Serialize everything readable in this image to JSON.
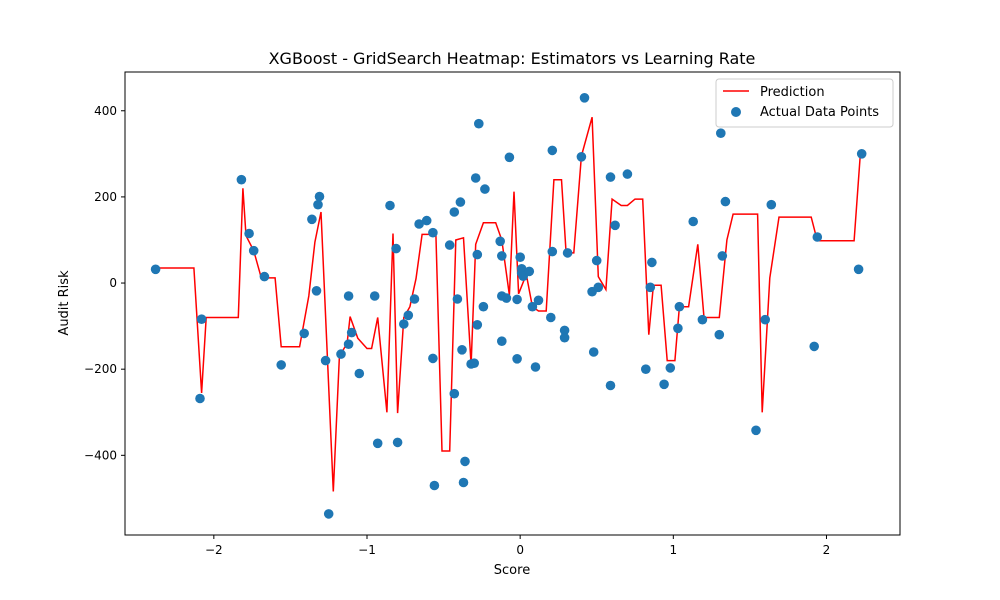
{
  "chart_data": {
    "type": "scatter",
    "title": "XGBoost - GridSearch Heatmap: Estimators vs Learning Rate",
    "xlabel": "Score",
    "ylabel": "Audit Risk",
    "xlim": [
      -2.58,
      2.48
    ],
    "ylim": [
      -585,
      490
    ],
    "xticks": [
      -2,
      -1,
      0,
      1,
      2
    ],
    "xtick_labels": [
      "−2",
      "−1",
      "0",
      "1",
      "2"
    ],
    "yticks": [
      -400,
      -200,
      0,
      200,
      400
    ],
    "ytick_labels": [
      "−400",
      "−200",
      "0",
      "200",
      "400"
    ],
    "grid": false,
    "legend_position": "top-right",
    "series": [
      {
        "name": "Prediction",
        "kind": "line",
        "color": "#ff0000",
        "points": [
          [
            -2.38,
            35
          ],
          [
            -2.13,
            35
          ],
          [
            -2.08,
            -255
          ],
          [
            -2.05,
            -80
          ],
          [
            -1.84,
            -80
          ],
          [
            -1.81,
            220
          ],
          [
            -1.79,
            110
          ],
          [
            -1.74,
            75
          ],
          [
            -1.69,
            12
          ],
          [
            -1.6,
            12
          ],
          [
            -1.56,
            -148
          ],
          [
            -1.44,
            -148
          ],
          [
            -1.38,
            -30
          ],
          [
            -1.34,
            95
          ],
          [
            -1.3,
            165
          ],
          [
            -1.22,
            -484
          ],
          [
            -1.18,
            -170
          ],
          [
            -1.13,
            -140
          ],
          [
            -1.11,
            -78
          ],
          [
            -1.06,
            -128
          ],
          [
            -1.0,
            -152
          ],
          [
            -0.97,
            -152
          ],
          [
            -0.93,
            -80
          ],
          [
            -0.87,
            -300
          ],
          [
            -0.83,
            115
          ],
          [
            -0.8,
            -302
          ],
          [
            -0.76,
            -80
          ],
          [
            -0.72,
            -55
          ],
          [
            -0.68,
            10
          ],
          [
            -0.64,
            113
          ],
          [
            -0.6,
            113
          ],
          [
            -0.55,
            113
          ],
          [
            -0.51,
            -390
          ],
          [
            -0.46,
            -390
          ],
          [
            -0.42,
            100
          ],
          [
            -0.37,
            105
          ],
          [
            -0.32,
            -190
          ],
          [
            -0.29,
            90
          ],
          [
            -0.24,
            140
          ],
          [
            -0.16,
            140
          ],
          [
            -0.12,
            100
          ],
          [
            -0.07,
            -28
          ],
          [
            -0.04,
            212
          ],
          [
            -0.01,
            -25
          ],
          [
            0.04,
            20
          ],
          [
            0.08,
            -55
          ],
          [
            0.12,
            -65
          ],
          [
            0.17,
            -65
          ],
          [
            0.22,
            240
          ],
          [
            0.27,
            240
          ],
          [
            0.3,
            70
          ],
          [
            0.35,
            70
          ],
          [
            0.4,
            295
          ],
          [
            0.47,
            385
          ],
          [
            0.51,
            15
          ],
          [
            0.56,
            -15
          ],
          [
            0.6,
            195
          ],
          [
            0.66,
            180
          ],
          [
            0.7,
            180
          ],
          [
            0.75,
            195
          ],
          [
            0.8,
            195
          ],
          [
            0.84,
            -120
          ],
          [
            0.87,
            -5
          ],
          [
            0.92,
            -5
          ],
          [
            0.96,
            -180
          ],
          [
            1.01,
            -180
          ],
          [
            1.04,
            -55
          ],
          [
            1.1,
            -55
          ],
          [
            1.16,
            90
          ],
          [
            1.2,
            -80
          ],
          [
            1.3,
            -80
          ],
          [
            1.35,
            100
          ],
          [
            1.39,
            160
          ],
          [
            1.55,
            160
          ],
          [
            1.58,
            -300
          ],
          [
            1.63,
            12
          ],
          [
            1.69,
            153
          ],
          [
            1.9,
            153
          ],
          [
            1.94,
            98
          ],
          [
            2.18,
            98
          ],
          [
            2.22,
            295
          ]
        ]
      },
      {
        "name": "Actual Data Points",
        "kind": "scatter",
        "color": "#1f77b4",
        "points": [
          [
            -2.38,
            32
          ],
          [
            -2.08,
            -84
          ],
          [
            -2.09,
            -268
          ],
          [
            -1.82,
            240
          ],
          [
            -1.77,
            115
          ],
          [
            -1.74,
            75
          ],
          [
            -1.67,
            15
          ],
          [
            -1.56,
            -190
          ],
          [
            -1.41,
            -117
          ],
          [
            -1.36,
            148
          ],
          [
            -1.33,
            -18
          ],
          [
            -1.32,
            182
          ],
          [
            -1.31,
            201
          ],
          [
            -1.27,
            -180
          ],
          [
            -1.25,
            -536
          ],
          [
            -1.17,
            -165
          ],
          [
            -1.12,
            -30
          ],
          [
            -1.12,
            -142
          ],
          [
            -1.1,
            -115
          ],
          [
            -1.05,
            -210
          ],
          [
            -0.95,
            -30
          ],
          [
            -0.93,
            -372
          ],
          [
            -0.85,
            180
          ],
          [
            -0.81,
            80
          ],
          [
            -0.8,
            -370
          ],
          [
            -0.76,
            -95
          ],
          [
            -0.73,
            -75
          ],
          [
            -0.69,
            -37
          ],
          [
            -0.66,
            137
          ],
          [
            -0.61,
            145
          ],
          [
            -0.57,
            117
          ],
          [
            -0.57,
            -175
          ],
          [
            -0.56,
            -470
          ],
          [
            -0.46,
            88
          ],
          [
            -0.43,
            165
          ],
          [
            -0.43,
            -257
          ],
          [
            -0.41,
            -37
          ],
          [
            -0.39,
            188
          ],
          [
            -0.38,
            -155
          ],
          [
            -0.37,
            -463
          ],
          [
            -0.36,
            -414
          ],
          [
            -0.32,
            -188
          ],
          [
            -0.3,
            -186
          ],
          [
            -0.29,
            244
          ],
          [
            -0.28,
            66
          ],
          [
            -0.28,
            -97
          ],
          [
            -0.27,
            370
          ],
          [
            -0.23,
            218
          ],
          [
            -0.24,
            -55
          ],
          [
            -0.13,
            97
          ],
          [
            -0.12,
            63
          ],
          [
            -0.12,
            -30
          ],
          [
            -0.12,
            -135
          ],
          [
            -0.09,
            -35
          ],
          [
            -0.07,
            292
          ],
          [
            -0.02,
            -38
          ],
          [
            -0.02,
            -176
          ],
          [
            0.0,
            60
          ],
          [
            0.01,
            33
          ],
          [
            0.01,
            23
          ],
          [
            0.02,
            16
          ],
          [
            0.06,
            27
          ],
          [
            0.08,
            -55
          ],
          [
            0.1,
            -195
          ],
          [
            0.12,
            -40
          ],
          [
            0.2,
            -80
          ],
          [
            0.21,
            308
          ],
          [
            0.21,
            73
          ],
          [
            0.29,
            -110
          ],
          [
            0.29,
            -127
          ],
          [
            0.31,
            70
          ],
          [
            0.4,
            293
          ],
          [
            0.42,
            430
          ],
          [
            0.47,
            -20
          ],
          [
            0.48,
            -160
          ],
          [
            0.5,
            52
          ],
          [
            0.51,
            -10
          ],
          [
            0.59,
            246
          ],
          [
            0.59,
            -238
          ],
          [
            0.62,
            134
          ],
          [
            0.7,
            253
          ],
          [
            0.82,
            -200
          ],
          [
            0.85,
            -10
          ],
          [
            0.86,
            48
          ],
          [
            0.94,
            -235
          ],
          [
            0.98,
            -197
          ],
          [
            1.03,
            -105
          ],
          [
            1.04,
            -55
          ],
          [
            1.13,
            143
          ],
          [
            1.19,
            -85
          ],
          [
            1.3,
            -120
          ],
          [
            1.31,
            348
          ],
          [
            1.32,
            63
          ],
          [
            1.34,
            189
          ],
          [
            1.54,
            -342
          ],
          [
            1.6,
            -85
          ],
          [
            1.64,
            182
          ],
          [
            1.92,
            -147
          ],
          [
            1.94,
            107
          ],
          [
            2.21,
            32
          ],
          [
            2.23,
            300
          ]
        ]
      }
    ]
  }
}
